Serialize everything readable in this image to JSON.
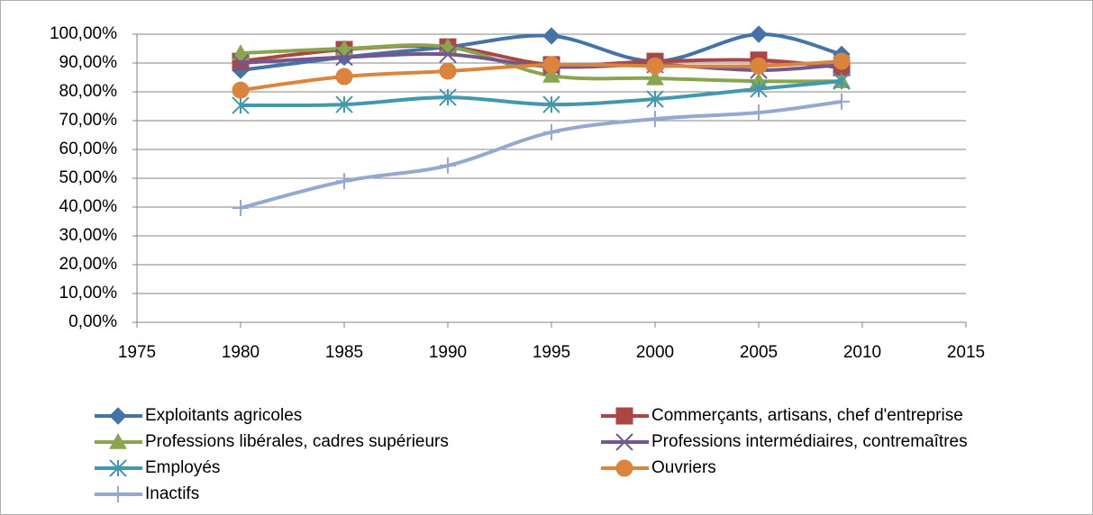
{
  "chart_data": {
    "type": "line",
    "x": [
      1980,
      1985,
      1990,
      1995,
      2000,
      2005,
      2009
    ],
    "xlim": [
      1975,
      2015
    ],
    "xticks": [
      1975,
      1980,
      1985,
      1990,
      1995,
      2000,
      2005,
      2010,
      2015
    ],
    "ylim": [
      0,
      100
    ],
    "yticks": [
      {
        "value": 0,
        "label": "0,00%"
      },
      {
        "value": 10,
        "label": "10,00%"
      },
      {
        "value": 20,
        "label": "20,00%"
      },
      {
        "value": 30,
        "label": "30,00%"
      },
      {
        "value": 40,
        "label": "40,00%"
      },
      {
        "value": 50,
        "label": "50,00%"
      },
      {
        "value": 60,
        "label": "60,00%"
      },
      {
        "value": 70,
        "label": "70,00%"
      },
      {
        "value": 80,
        "label": "80,00%"
      },
      {
        "value": 90,
        "label": "90,00%"
      },
      {
        "value": 100,
        "label": "100,00%"
      }
    ],
    "grid": true,
    "smooth": true,
    "legend": "bottom",
    "series": [
      {
        "name": "Exploitants agricoles",
        "color": "#4572a7",
        "marker": "diamond",
        "values": [
          87.5,
          92,
          95.6,
          99.4,
          90.6,
          100,
          93
        ]
      },
      {
        "name": "Commerçants, artisans, chef d'entreprise",
        "color": "#aa4643",
        "marker": "square",
        "values": [
          90.6,
          94.7,
          95.6,
          89.4,
          90.6,
          91,
          88.4
        ]
      },
      {
        "name": "Professions libérales, cadres supérieurs",
        "color": "#89a54e",
        "marker": "triangle",
        "values": [
          93.4,
          95,
          95.6,
          85.6,
          84.7,
          83.7,
          83.7
        ]
      },
      {
        "name": "Professions intermédiaires, contremaîtres",
        "color": "#71588f",
        "marker": "x",
        "values": [
          90,
          92,
          93,
          88.7,
          89.4,
          87.5,
          89.4
        ]
      },
      {
        "name": "Employés",
        "color": "#4198af",
        "marker": "star",
        "values": [
          75.3,
          75.6,
          78.1,
          75.6,
          77.5,
          81,
          83.7
        ]
      },
      {
        "name": "Ouvriers",
        "color": "#db843d",
        "marker": "circle",
        "values": [
          80.6,
          85.3,
          87.2,
          89.4,
          89,
          89,
          90.6
        ]
      },
      {
        "name": "Inactifs",
        "color": "#93a9cf",
        "marker": "plus",
        "values": [
          39.7,
          49,
          54.4,
          66,
          70.6,
          72.8,
          76.6
        ]
      }
    ]
  }
}
